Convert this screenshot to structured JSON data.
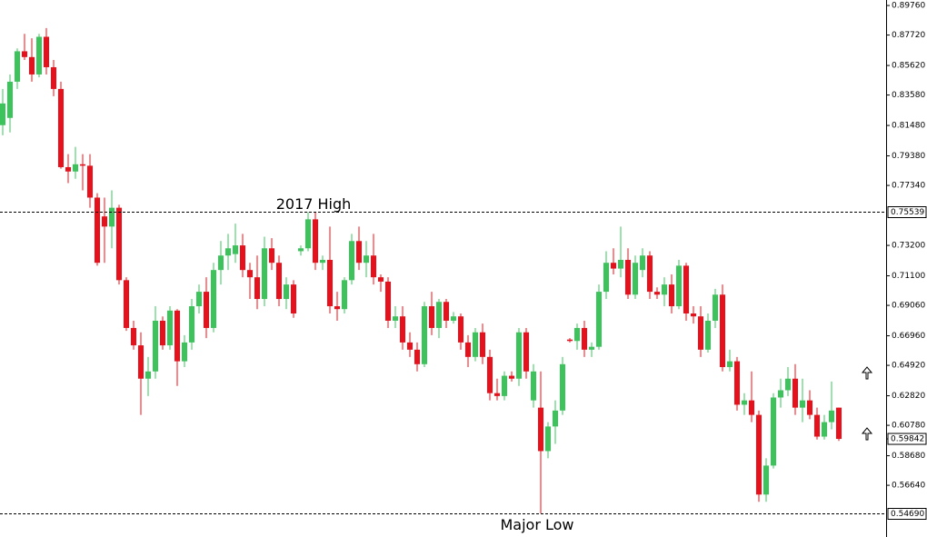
{
  "chart_data": {
    "type": "candlestick",
    "up_color": "#3cc35c",
    "down_color": "#e8101a",
    "ylim": [
      0.5307,
      0.9014
    ],
    "yticks": [
      {
        "value": 0.8976,
        "label": "0.89760"
      },
      {
        "value": 0.8772,
        "label": "0.87720"
      },
      {
        "value": 0.8562,
        "label": "0.85620"
      },
      {
        "value": 0.8358,
        "label": "0.83580"
      },
      {
        "value": 0.8148,
        "label": "0.81480"
      },
      {
        "value": 0.7938,
        "label": "0.79380"
      },
      {
        "value": 0.7734,
        "label": "0.77340"
      },
      {
        "value": 0.732,
        "label": "0.73200"
      },
      {
        "value": 0.711,
        "label": "0.71100"
      },
      {
        "value": 0.6906,
        "label": "0.69060"
      },
      {
        "value": 0.6696,
        "label": "0.66960"
      },
      {
        "value": 0.6492,
        "label": "0.64920"
      },
      {
        "value": 0.6282,
        "label": "0.62820"
      },
      {
        "value": 0.6078,
        "label": "0.60780"
      },
      {
        "value": 0.5868,
        "label": "0.58680"
      },
      {
        "value": 0.5664,
        "label": "0.56640"
      }
    ],
    "levels": [
      {
        "value": 0.75539,
        "label": "0.75539",
        "text": "2017 High"
      },
      {
        "value": 0.5469,
        "label": "0.54690",
        "text": "Major Low"
      }
    ],
    "last_price": {
      "value": 0.59842,
      "label": "0.59842"
    },
    "open": [
      0.815,
      0.82,
      0.845,
      0.866,
      0.862,
      0.85,
      0.876,
      0.855,
      0.84,
      0.786,
      0.783,
      0.788,
      0.787,
      0.765,
      0.752,
      0.745,
      0.758,
      0.708,
      0.675,
      0.663,
      0.64,
      0.645,
      0.68,
      0.663,
      0.687,
      0.652,
      0.665,
      0.69,
      0.7,
      0.675,
      0.715,
      0.725,
      0.726,
      0.732,
      0.715,
      0.71,
      0.695,
      0.73,
      0.72,
      0.695,
      0.705,
      0.728,
      0.73,
      0.75,
      0.72,
      0.722,
      0.69,
      0.688,
      0.708,
      0.735,
      0.72,
      0.725,
      0.71,
      0.707,
      0.68,
      0.683,
      0.665,
      0.66,
      0.65,
      0.69,
      0.675,
      0.693,
      0.68,
      0.683,
      0.665,
      0.655,
      0.672,
      0.655,
      0.63,
      0.628,
      0.642,
      0.64,
      0.672,
      0.625,
      0.62,
      0.59,
      0.607,
      0.618,
      0.667,
      0.666,
      0.675,
      0.66,
      0.662,
      0.7,
      0.72,
      0.716,
      0.722,
      0.698,
      0.715,
      0.725,
      0.7,
      0.698,
      0.705,
      0.69,
      0.718,
      0.685,
      0.683,
      0.66,
      0.68,
      0.698,
      0.648,
      0.652,
      0.622,
      0.625,
      0.615,
      0.56,
      0.58,
      0.627,
      0.632,
      0.64,
      0.62,
      0.625,
      0.615,
      0.6,
      0.61,
      0.62
    ],
    "high": [
      0.84,
      0.85,
      0.868,
      0.878,
      0.875,
      0.878,
      0.882,
      0.86,
      0.845,
      0.795,
      0.8,
      0.795,
      0.795,
      0.768,
      0.765,
      0.77,
      0.76,
      0.71,
      0.68,
      0.672,
      0.655,
      0.69,
      0.683,
      0.69,
      0.688,
      0.67,
      0.695,
      0.705,
      0.71,
      0.72,
      0.735,
      0.74,
      0.747,
      0.74,
      0.72,
      0.725,
      0.738,
      0.737,
      0.725,
      0.71,
      0.708,
      0.732,
      0.755,
      0.755,
      0.725,
      0.745,
      0.7,
      0.71,
      0.74,
      0.745,
      0.735,
      0.74,
      0.712,
      0.71,
      0.69,
      0.69,
      0.672,
      0.665,
      0.693,
      0.7,
      0.695,
      0.695,
      0.686,
      0.685,
      0.67,
      0.675,
      0.678,
      0.66,
      0.64,
      0.645,
      0.645,
      0.675,
      0.675,
      0.65,
      0.645,
      0.61,
      0.625,
      0.655,
      0.668,
      0.678,
      0.68,
      0.665,
      0.705,
      0.728,
      0.73,
      0.745,
      0.73,
      0.725,
      0.73,
      0.728,
      0.703,
      0.71,
      0.712,
      0.722,
      0.72,
      0.69,
      0.69,
      0.685,
      0.702,
      0.705,
      0.66,
      0.655,
      0.63,
      0.645,
      0.618,
      0.585,
      0.63,
      0.64,
      0.648,
      0.65,
      0.64,
      0.632,
      0.62,
      0.615,
      0.638,
      0.62
    ],
    "low": [
      0.808,
      0.81,
      0.84,
      0.86,
      0.845,
      0.848,
      0.85,
      0.835,
      0.785,
      0.775,
      0.778,
      0.77,
      0.758,
      0.718,
      0.72,
      0.73,
      0.705,
      0.673,
      0.66,
      0.615,
      0.628,
      0.64,
      0.66,
      0.66,
      0.635,
      0.648,
      0.66,
      0.685,
      0.668,
      0.672,
      0.705,
      0.715,
      0.72,
      0.71,
      0.695,
      0.688,
      0.69,
      0.715,
      0.69,
      0.688,
      0.682,
      0.725,
      0.728,
      0.715,
      0.715,
      0.685,
      0.68,
      0.685,
      0.705,
      0.715,
      0.71,
      0.705,
      0.7,
      0.675,
      0.675,
      0.66,
      0.655,
      0.645,
      0.648,
      0.67,
      0.668,
      0.675,
      0.678,
      0.66,
      0.648,
      0.652,
      0.65,
      0.625,
      0.625,
      0.625,
      0.638,
      0.635,
      0.64,
      0.62,
      0.5469,
      0.585,
      0.595,
      0.615,
      0.665,
      0.66,
      0.655,
      0.655,
      0.66,
      0.695,
      0.712,
      0.71,
      0.695,
      0.695,
      0.71,
      0.695,
      0.695,
      0.69,
      0.685,
      0.688,
      0.68,
      0.678,
      0.655,
      0.658,
      0.675,
      0.645,
      0.645,
      0.618,
      0.615,
      0.61,
      0.555,
      0.555,
      0.578,
      0.62,
      0.628,
      0.615,
      0.61,
      0.612,
      0.598,
      0.598,
      0.605,
      0.597
    ],
    "close": [
      0.83,
      0.845,
      0.866,
      0.862,
      0.85,
      0.876,
      0.855,
      0.84,
      0.786,
      0.783,
      0.788,
      0.787,
      0.765,
      0.72,
      0.745,
      0.758,
      0.708,
      0.675,
      0.663,
      0.64,
      0.645,
      0.68,
      0.663,
      0.687,
      0.652,
      0.665,
      0.69,
      0.7,
      0.675,
      0.715,
      0.725,
      0.73,
      0.732,
      0.715,
      0.71,
      0.695,
      0.73,
      0.72,
      0.695,
      0.705,
      0.685,
      0.73,
      0.75,
      0.72,
      0.722,
      0.69,
      0.688,
      0.708,
      0.735,
      0.72,
      0.725,
      0.71,
      0.707,
      0.68,
      0.683,
      0.665,
      0.66,
      0.65,
      0.69,
      0.675,
      0.693,
      0.68,
      0.683,
      0.665,
      0.655,
      0.672,
      0.655,
      0.63,
      0.628,
      0.642,
      0.64,
      0.672,
      0.645,
      0.645,
      0.59,
      0.607,
      0.618,
      0.65,
      0.666,
      0.675,
      0.66,
      0.662,
      0.7,
      0.72,
      0.716,
      0.722,
      0.698,
      0.72,
      0.725,
      0.7,
      0.698,
      0.705,
      0.69,
      0.718,
      0.685,
      0.683,
      0.66,
      0.68,
      0.698,
      0.648,
      0.652,
      0.622,
      0.625,
      0.615,
      0.56,
      0.58,
      0.627,
      0.632,
      0.64,
      0.62,
      0.625,
      0.615,
      0.6,
      0.61,
      0.618,
      0.59842
    ]
  }
}
